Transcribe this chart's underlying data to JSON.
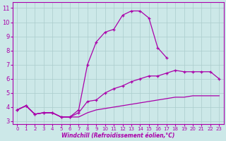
{
  "xlabel": "Windchill (Refroidissement éolien,°C)",
  "background_color": "#cce8e8",
  "line_color": "#aa00aa",
  "grid_color": "#aacccc",
  "xlim": [
    -0.5,
    23.5
  ],
  "ylim": [
    2.8,
    11.4
  ],
  "yticks": [
    3,
    4,
    5,
    6,
    7,
    8,
    9,
    10,
    11
  ],
  "xticks": [
    0,
    1,
    2,
    3,
    4,
    5,
    6,
    7,
    8,
    9,
    10,
    11,
    12,
    13,
    14,
    15,
    16,
    17,
    18,
    19,
    20,
    21,
    22,
    23
  ],
  "series_top_x": [
    0,
    1,
    2,
    3,
    4,
    5,
    6,
    7,
    8,
    9,
    10,
    11,
    12,
    13,
    14,
    15,
    16,
    17,
    18,
    19,
    20,
    21,
    22,
    23
  ],
  "series_top_y": [
    3.8,
    4.1,
    3.5,
    3.6,
    3.6,
    3.3,
    3.3,
    3.8,
    7.0,
    8.6,
    9.3,
    9.5,
    10.5,
    10.8,
    10.8,
    10.3,
    8.2,
    7.5,
    null,
    null,
    null,
    null,
    null,
    null
  ],
  "series_mid_x": [
    0,
    1,
    2,
    3,
    4,
    5,
    6,
    7,
    8,
    9,
    10,
    11,
    12,
    13,
    14,
    15,
    16,
    17,
    18,
    19,
    20,
    21,
    22,
    23
  ],
  "series_mid_y": [
    3.8,
    4.1,
    3.5,
    3.6,
    3.6,
    3.3,
    3.3,
    3.6,
    4.4,
    4.5,
    5.0,
    5.3,
    5.5,
    5.8,
    6.0,
    6.2,
    6.2,
    6.4,
    6.6,
    6.5,
    6.5,
    6.5,
    6.5,
    6.0
  ],
  "series_bot_x": [
    0,
    1,
    2,
    3,
    4,
    5,
    6,
    7,
    8,
    9,
    10,
    11,
    12,
    13,
    14,
    15,
    16,
    17,
    18,
    19,
    20,
    21,
    22,
    23
  ],
  "series_bot_y": [
    3.8,
    4.1,
    3.5,
    3.6,
    3.6,
    3.3,
    3.3,
    3.3,
    3.6,
    3.8,
    3.9,
    4.0,
    4.1,
    4.2,
    4.3,
    4.4,
    4.5,
    4.6,
    4.7,
    4.7,
    4.8,
    4.8,
    4.8,
    4.8
  ]
}
